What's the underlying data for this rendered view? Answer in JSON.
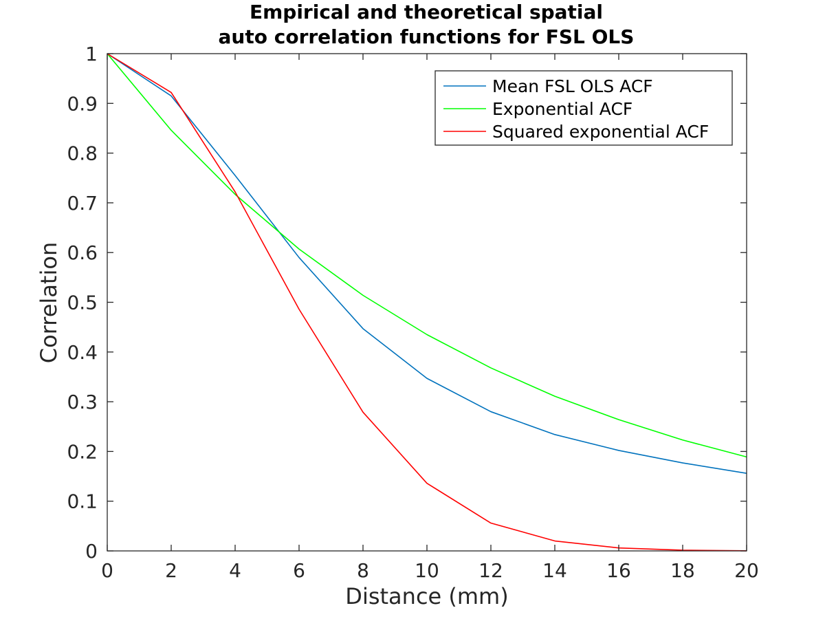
{
  "chart_data": {
    "type": "line",
    "title_lines": [
      "Empirical and theoretical spatial",
      "auto correlation functions for FSL OLS"
    ],
    "xlabel": "Distance (mm)",
    "ylabel": "Correlation",
    "xlim": [
      0,
      20
    ],
    "ylim": [
      0,
      1
    ],
    "xticks": [
      0,
      2,
      4,
      6,
      8,
      10,
      12,
      14,
      16,
      18,
      20
    ],
    "yticks": [
      0,
      0.1,
      0.2,
      0.3,
      0.4,
      0.5,
      0.6,
      0.7,
      0.8,
      0.9,
      1
    ],
    "grid": false,
    "legend_position": "top-right",
    "x": [
      0,
      2,
      4,
      6,
      8,
      10,
      12,
      14,
      16,
      18,
      20
    ],
    "series": [
      {
        "name": "Mean FSL OLS ACF",
        "color": "#0072bd",
        "values": [
          1.0,
          0.915,
          0.755,
          0.59,
          0.447,
          0.347,
          0.28,
          0.234,
          0.202,
          0.177,
          0.156
        ]
      },
      {
        "name": "Exponential ACF",
        "color": "#00ff00",
        "values": [
          1.0,
          0.846,
          0.717,
          0.607,
          0.514,
          0.435,
          0.368,
          0.311,
          0.264,
          0.223,
          0.189
        ]
      },
      {
        "name": "Squared exponential ACF",
        "color": "#ff0000",
        "values": [
          1.0,
          0.922,
          0.722,
          0.486,
          0.279,
          0.136,
          0.056,
          0.02,
          0.006,
          0.0015,
          0.0003
        ]
      }
    ]
  }
}
